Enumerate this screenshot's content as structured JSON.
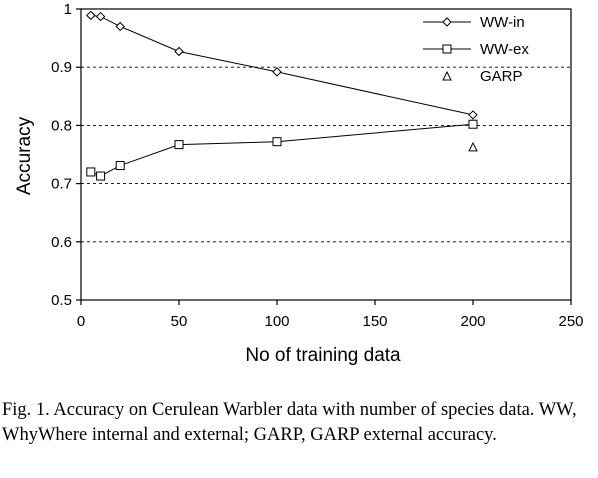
{
  "chart_data": {
    "type": "line",
    "title": "",
    "xlabel": "No of training data",
    "ylabel": "Accuracy",
    "xlim": [
      0,
      250
    ],
    "ylim": [
      0.5,
      1
    ],
    "xticks": [
      0,
      50,
      100,
      150,
      200,
      250
    ],
    "yticks": [
      0.5,
      0.6,
      0.7,
      0.8,
      0.9,
      1
    ],
    "ytick_labels": [
      "0.5",
      "0.6",
      "0.7",
      "0.8",
      "0.9",
      "1"
    ],
    "grid": "horizontal dashed",
    "legend_position": "top-right",
    "series": [
      {
        "name": "WW-in",
        "marker": "diamond",
        "line": true,
        "x": [
          5,
          10,
          20,
          50,
          100,
          200
        ],
        "y": [
          0.989,
          0.987,
          0.97,
          0.927,
          0.892,
          0.818
        ]
      },
      {
        "name": "WW-ex",
        "marker": "square",
        "line": true,
        "x": [
          5,
          10,
          20,
          50,
          100,
          200
        ],
        "y": [
          0.72,
          0.713,
          0.731,
          0.767,
          0.772,
          0.802
        ]
      },
      {
        "name": "GARP",
        "marker": "triangle",
        "line": false,
        "x": [
          200
        ],
        "y": [
          0.763
        ]
      }
    ]
  },
  "caption": "Fig. 1. Accuracy on Cerulean Warbler data with number of species data. WW, WhyWhere internal and external; GARP, GARP external accuracy."
}
